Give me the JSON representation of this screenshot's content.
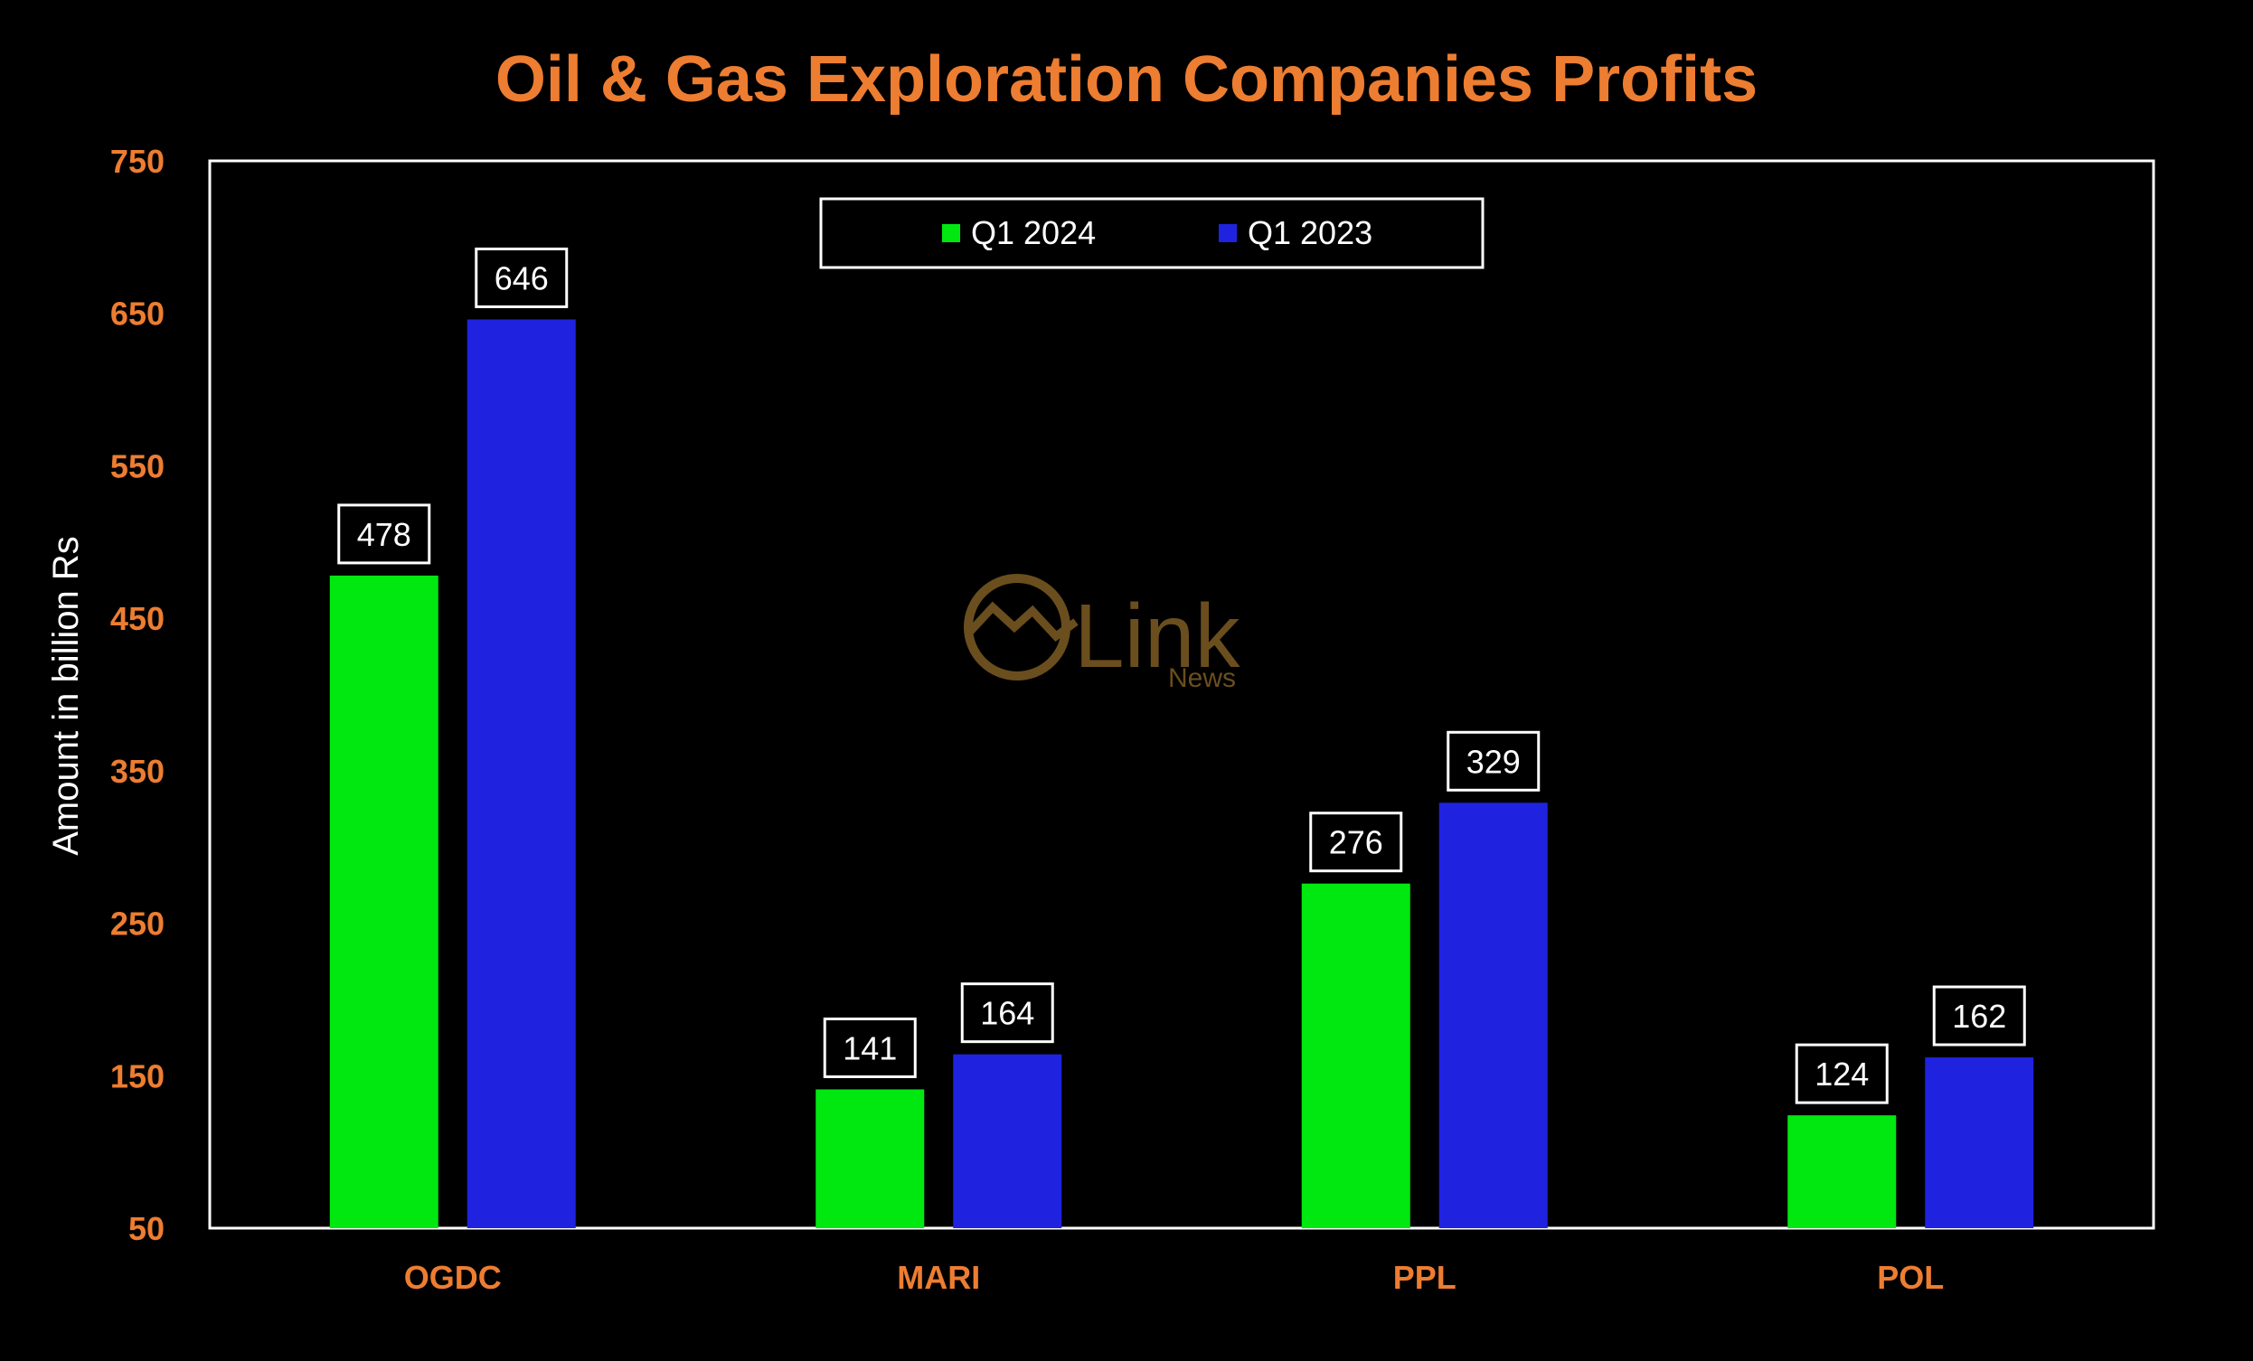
{
  "colors": {
    "background": "#000000",
    "accent": "#ED7D31",
    "text": "#FFFFFF",
    "q1_2024": "#00E80F",
    "q1_2023": "#1F23E0",
    "watermark": "#6B4E1E"
  },
  "watermark": {
    "text": "Link",
    "subtext": "News"
  },
  "chart_data": {
    "type": "bar",
    "title": "Oil & Gas Exploration Companies Profits",
    "xlabel": "",
    "ylabel": "Amount in billion Rs",
    "categories": [
      "OGDC",
      "MARI",
      "PPL",
      "POL"
    ],
    "series": [
      {
        "name": "Q1 2024",
        "color": "#00E80F",
        "values": [
          478,
          141,
          276,
          124
        ]
      },
      {
        "name": "Q1 2023",
        "color": "#1F23E0",
        "values": [
          646,
          164,
          329,
          162
        ]
      }
    ],
    "ylim": [
      50,
      750
    ],
    "yticks": [
      50,
      150,
      250,
      350,
      450,
      550,
      650,
      750
    ],
    "grid": false,
    "legend": "top-center",
    "data_labels": true
  }
}
